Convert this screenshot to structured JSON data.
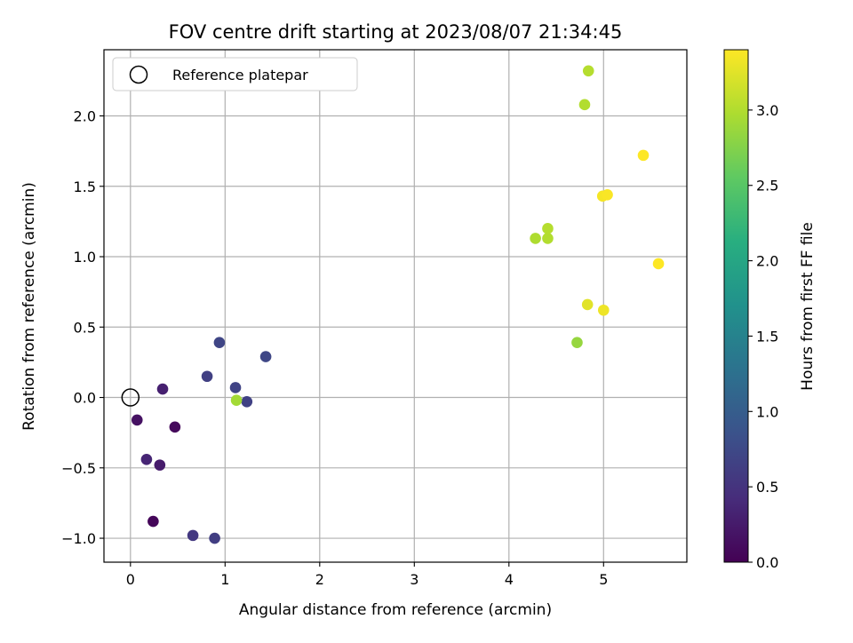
{
  "chart_data": {
    "type": "scatter",
    "title": "FOV centre drift starting at 2023/08/07 21:34:45",
    "xlabel": "Angular distance from reference (arcmin)",
    "ylabel": "Rotation from reference (arcmin)",
    "xlim": [
      -0.28,
      5.88
    ],
    "ylim": [
      -1.17,
      2.47
    ],
    "xticks": [
      0,
      1,
      2,
      3,
      4,
      5
    ],
    "xtick_labels": [
      "0",
      "1",
      "2",
      "3",
      "4",
      "5"
    ],
    "yticks": [
      -1.0,
      -0.5,
      0.0,
      0.5,
      1.0,
      1.5,
      2.0
    ],
    "ytick_labels": [
      "−1.0",
      "−0.5",
      "0.0",
      "0.5",
      "1.0",
      "1.5",
      "2.0"
    ],
    "grid": true,
    "legend": {
      "position": "top-left",
      "entries": [
        "Reference platepar"
      ]
    },
    "reference_point": {
      "x": 0,
      "y": 0
    },
    "colorbar": {
      "label": "Hours from first FF file",
      "range": [
        0.0,
        3.4
      ],
      "ticks": [
        0.0,
        0.5,
        1.0,
        1.5,
        2.0,
        2.5,
        3.0
      ],
      "tick_labels": [
        "0.0",
        "0.5",
        "1.0",
        "1.5",
        "2.0",
        "2.5",
        "3.0"
      ],
      "colormap": "viridis"
    },
    "points": [
      {
        "x": 0.24,
        "y": -0.88,
        "c": 0.05
      },
      {
        "x": 0.47,
        "y": -0.21,
        "c": 0.08
      },
      {
        "x": 0.07,
        "y": -0.16,
        "c": 0.15
      },
      {
        "x": 0.31,
        "y": -0.48,
        "c": 0.25
      },
      {
        "x": 0.34,
        "y": 0.06,
        "c": 0.3
      },
      {
        "x": 0.17,
        "y": -0.44,
        "c": 0.35
      },
      {
        "x": 0.66,
        "y": -0.98,
        "c": 0.55
      },
      {
        "x": 0.89,
        "y": -1.0,
        "c": 0.62
      },
      {
        "x": 0.81,
        "y": 0.15,
        "c": 0.64
      },
      {
        "x": 1.11,
        "y": 0.07,
        "c": 0.68
      },
      {
        "x": 1.23,
        "y": -0.03,
        "c": 0.66
      },
      {
        "x": 0.94,
        "y": 0.39,
        "c": 0.7
      },
      {
        "x": 1.43,
        "y": 0.29,
        "c": 0.72
      },
      {
        "x": 1.12,
        "y": -0.02,
        "c": 2.92
      },
      {
        "x": 4.72,
        "y": 0.39,
        "c": 2.85
      },
      {
        "x": 4.28,
        "y": 1.13,
        "c": 2.98
      },
      {
        "x": 4.41,
        "y": 1.13,
        "c": 3.0
      },
      {
        "x": 4.41,
        "y": 1.2,
        "c": 3.02
      },
      {
        "x": 4.8,
        "y": 2.08,
        "c": 3.0
      },
      {
        "x": 4.84,
        "y": 2.32,
        "c": 3.02
      },
      {
        "x": 4.83,
        "y": 0.66,
        "c": 3.25
      },
      {
        "x": 5.0,
        "y": 0.62,
        "c": 3.32
      },
      {
        "x": 4.99,
        "y": 1.43,
        "c": 3.36
      },
      {
        "x": 5.04,
        "y": 1.44,
        "c": 3.38
      },
      {
        "x": 5.42,
        "y": 1.72,
        "c": 3.4
      },
      {
        "x": 5.58,
        "y": 0.95,
        "c": 3.4
      }
    ]
  }
}
